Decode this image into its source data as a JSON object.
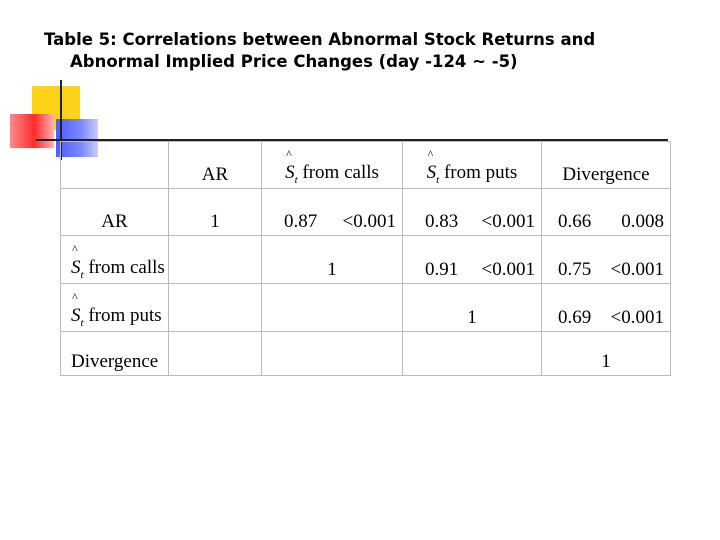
{
  "title": {
    "line1": "Table 5: Correlations between Abnormal Stock Returns and",
    "line2": "Abnormal Implied Price Changes (day -124 ~ -5)"
  },
  "table": {
    "header": {
      "corner": "",
      "ar": "AR",
      "s_symbol": "S",
      "s_hat": "^",
      "s_sub": "t",
      "calls_suffix": " from calls",
      "puts_suffix": " from puts",
      "divergence": "Divergence"
    },
    "rows": [
      {
        "label": "AR",
        "ar": "1",
        "calls_r": "0.87",
        "calls_p": "<0.001",
        "puts_r": "0.83",
        "puts_p": "<0.001",
        "div_r": "0.66",
        "div_p": "0.008"
      },
      {
        "label_suffix": " from calls",
        "ar": "",
        "calls_r": "1",
        "puts_r": "0.91",
        "puts_p": "<0.001",
        "div_r": "0.75",
        "div_p": "<0.001"
      },
      {
        "label_suffix": " from puts",
        "ar": "",
        "calls_r": "",
        "puts_r": "1",
        "div_r": "0.69",
        "div_p": "<0.001"
      },
      {
        "label": "Divergence",
        "ar": "",
        "calls_r": "",
        "puts_r": "",
        "div_r": "1"
      }
    ]
  },
  "colors": {
    "deco_yellow": "#ffd21a",
    "deco_blue": "#4d5dff",
    "deco_red": "#ff2b2b",
    "grid": "#bbbbbb"
  }
}
